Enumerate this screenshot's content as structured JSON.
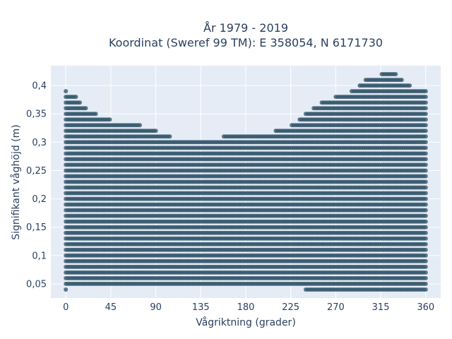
{
  "chart_data": {
    "type": "scatter",
    "title": "År 1979 - 2019",
    "subtitle": "Koordinat (Sweref 99 TM): E 358054, N 6171730",
    "xlabel": "Vågriktning (grader)",
    "ylabel": "Signifikant våghöjd (m)",
    "xlim": [
      -15,
      375
    ],
    "ylim": [
      0.025,
      0.435
    ],
    "x_ticks": [
      0,
      45,
      90,
      135,
      180,
      225,
      270,
      315,
      360
    ],
    "x_tick_labels": [
      "0",
      "45",
      "90",
      "135",
      "180",
      "225",
      "270",
      "315",
      "360"
    ],
    "y_ticks": [
      0.05,
      0.1,
      0.15,
      0.2,
      0.25,
      0.3,
      0.35,
      0.4
    ],
    "y_tick_labels": [
      "0,05",
      "0,1",
      "0,15",
      "0,2",
      "0,25",
      "0,3",
      "0,35",
      "0,4"
    ],
    "grid": true,
    "marker_color": "#34566b",
    "plot_bgcolor": "#e5ecf6",
    "envelope_description_points": {
      "upper_envelope": [
        {
          "x": 0,
          "y": 0.39
        },
        {
          "x": 10,
          "y": 0.38
        },
        {
          "x": 20,
          "y": 0.36
        },
        {
          "x": 30,
          "y": 0.35
        },
        {
          "x": 45,
          "y": 0.34
        },
        {
          "x": 60,
          "y": 0.33
        },
        {
          "x": 75,
          "y": 0.33
        },
        {
          "x": 90,
          "y": 0.32
        },
        {
          "x": 105,
          "y": 0.31
        },
        {
          "x": 120,
          "y": 0.3
        },
        {
          "x": 135,
          "y": 0.31
        },
        {
          "x": 150,
          "y": 0.3
        },
        {
          "x": 165,
          "y": 0.32
        },
        {
          "x": 180,
          "y": 0.31
        },
        {
          "x": 195,
          "y": 0.31
        },
        {
          "x": 210,
          "y": 0.32
        },
        {
          "x": 225,
          "y": 0.33
        },
        {
          "x": 240,
          "y": 0.35
        },
        {
          "x": 255,
          "y": 0.37
        },
        {
          "x": 270,
          "y": 0.38
        },
        {
          "x": 285,
          "y": 0.39
        },
        {
          "x": 300,
          "y": 0.41
        },
        {
          "x": 315,
          "y": 0.42
        },
        {
          "x": 330,
          "y": 0.42
        },
        {
          "x": 345,
          "y": 0.4
        },
        {
          "x": 360,
          "y": 0.39
        }
      ],
      "lower_envelope": [
        {
          "x": 0,
          "y": 0.04
        },
        {
          "x": 45,
          "y": 0.05
        },
        {
          "x": 90,
          "y": 0.05
        },
        {
          "x": 135,
          "y": 0.05
        },
        {
          "x": 180,
          "y": 0.05
        },
        {
          "x": 225,
          "y": 0.05
        },
        {
          "x": 240,
          "y": 0.04
        },
        {
          "x": 270,
          "y": 0.04
        },
        {
          "x": 315,
          "y": 0.04
        },
        {
          "x": 360,
          "y": 0.04
        }
      ]
    }
  }
}
